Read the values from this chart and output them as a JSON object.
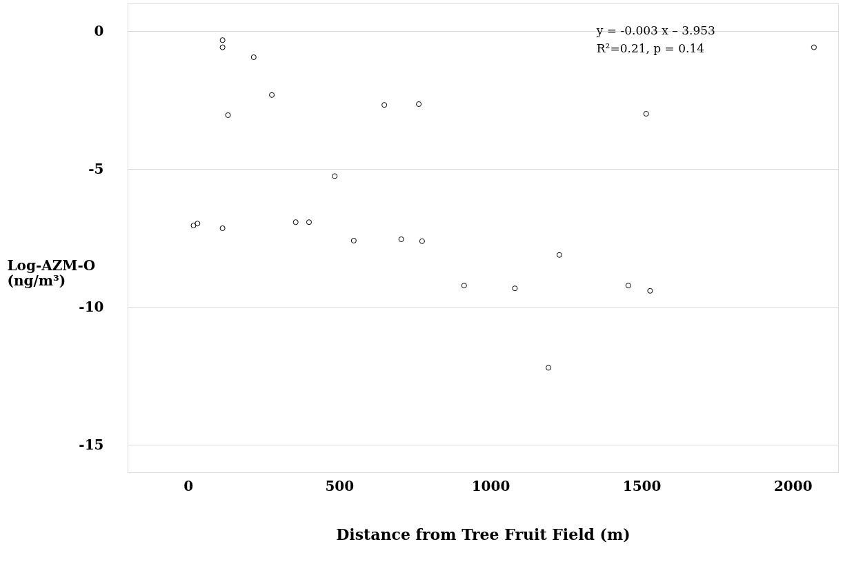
{
  "chart_data": {
    "type": "scatter",
    "xlabel": "Distance from Tree Fruit Field (m)",
    "ylabel": "Log-AZM-O\n(ng/m³)",
    "x": [
      18,
      31,
      114,
      114,
      114,
      132,
      217,
      277,
      356,
      400,
      485,
      548,
      649,
      705,
      763,
      774,
      913,
      1081,
      1228,
      1192,
      1456,
      1515,
      1528,
      2070
    ],
    "series": [
      {
        "color": "#000000",
        "values": [
          -7.05,
          -6.98,
          -0.33,
          -0.59,
          -7.15,
          -3.05,
          -0.95,
          -2.32,
          -6.93,
          -6.93,
          -5.26,
          -7.6,
          -2.68,
          -7.55,
          -2.65,
          -7.62,
          -9.23,
          -9.33,
          -8.12,
          -12.21,
          -9.23,
          -3.0,
          -9.42,
          -0.59
        ]
      }
    ],
    "marker": "circle",
    "xlim": [
      -200,
      2150
    ],
    "xticks": [
      0,
      500,
      1000,
      1500,
      2000
    ],
    "ylim": [
      -16,
      1
    ],
    "yticks": [
      0,
      -5,
      -10,
      -15
    ],
    "grid": "y",
    "annotations": [
      "y = -0.003 x – 3.953",
      "R²=0.21, p = 0.14"
    ]
  }
}
